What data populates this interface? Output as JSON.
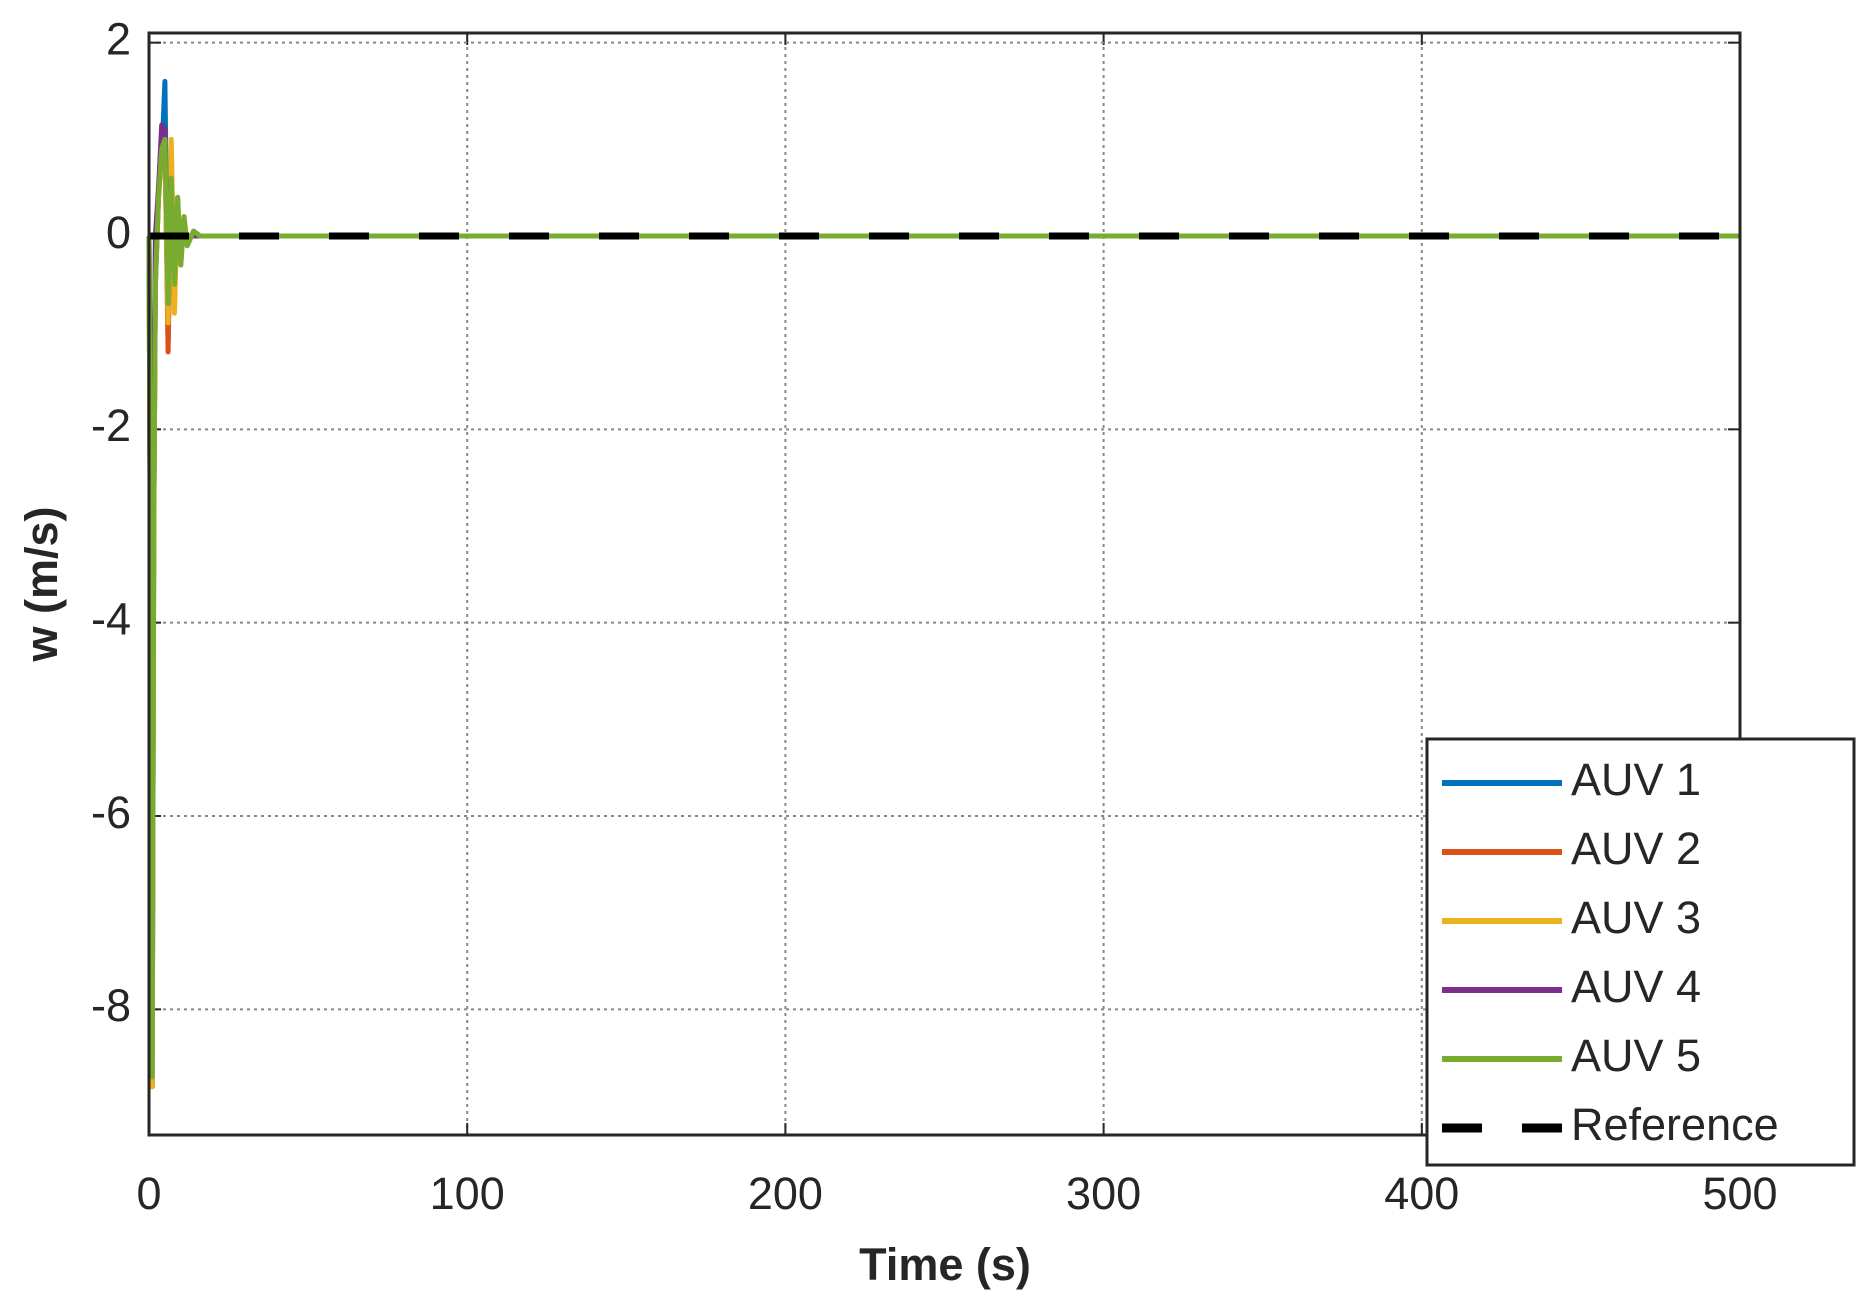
{
  "chart_data": {
    "type": "line",
    "x_label": "Time (s)",
    "y_label": "w (m/s)",
    "x": [
      0,
      0.5,
      1,
      1.5,
      2,
      3,
      4,
      5,
      6,
      7,
      8,
      9,
      10,
      11,
      12,
      14,
      16,
      18,
      20,
      30,
      500
    ],
    "series": [
      {
        "name": "AUV 1",
        "color": "#0072BD",
        "values": [
          0,
          -4,
          -8.8,
          -3,
          -0.5,
          0.5,
          0.8,
          1.6,
          -1.1,
          0.6,
          -0.5,
          0.3,
          -0.2,
          0.1,
          -0.1,
          0.05,
          0,
          0,
          0,
          0,
          0
        ]
      },
      {
        "name": "AUV 2",
        "color": "#D95319",
        "values": [
          0,
          -4,
          -8.8,
          -3,
          -0.5,
          0.4,
          0.9,
          1.0,
          -1.2,
          0.7,
          -0.6,
          0.3,
          -0.2,
          0.1,
          -0.05,
          0.02,
          0,
          0,
          0,
          0,
          0
        ]
      },
      {
        "name": "AUV 3",
        "color": "#EDB120",
        "values": [
          0,
          -4,
          -8.8,
          -3,
          -0.5,
          0.5,
          1.0,
          0.8,
          -0.9,
          1.0,
          -0.8,
          0.4,
          -0.3,
          0.2,
          -0.1,
          0.05,
          0,
          0,
          0,
          0,
          0
        ]
      },
      {
        "name": "AUV 4",
        "color": "#7E2F8E",
        "values": [
          0,
          -2,
          -4,
          -2,
          0,
          0.5,
          1.15,
          1.1,
          -0.5,
          0.5,
          -0.3,
          0.2,
          -0.1,
          0.05,
          0,
          0,
          0,
          0,
          0,
          0,
          0
        ]
      },
      {
        "name": "AUV 5",
        "color": "#77AC30",
        "values": [
          0,
          -4,
          -8.7,
          -3,
          -0.5,
          0.4,
          0.9,
          1.0,
          -0.7,
          0.6,
          -0.5,
          0.4,
          -0.3,
          0.2,
          -0.1,
          0.05,
          0,
          0,
          0,
          0,
          0
        ]
      },
      {
        "name": "Reference",
        "color": "#000000",
        "dashed": true,
        "values": [
          0,
          0,
          0,
          0,
          0,
          0,
          0,
          0,
          0,
          0,
          0,
          0,
          0,
          0,
          0,
          0,
          0,
          0,
          0,
          0,
          0
        ]
      }
    ],
    "xlim": [
      0,
      500
    ],
    "xticks": [
      0,
      100,
      200,
      300,
      400,
      500
    ],
    "ylim": [
      -9.3,
      2.1
    ],
    "yticks": [
      -8,
      -6,
      -4,
      -2,
      0,
      2
    ],
    "grid": true,
    "legend": "lower right"
  }
}
